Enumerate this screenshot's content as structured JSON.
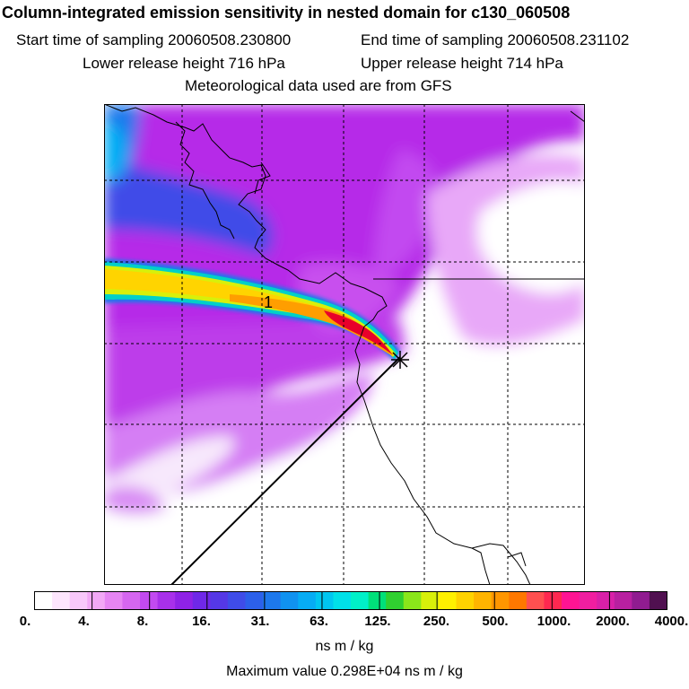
{
  "header": {
    "title": "Column-integrated emission sensitivity in nested domain for c130_060508",
    "start_label": "Start time of sampling 20060508.230800",
    "end_label": "End time of sampling 20060508.231102",
    "lower_label": "Lower release height  716 hPa",
    "upper_label": "Upper release height  714 hPa",
    "met_label": "Meteorological data used are from GFS"
  },
  "map": {
    "plume_label": "1",
    "colors": {
      "background": "#ffffff",
      "purple": "#b428e8",
      "light_purple": "#d97cf5",
      "pale": "#f3d6fb",
      "blue": "#3a4ee0",
      "cyan": "#1a9cf0",
      "plume_yellow": "#ffd400",
      "plume_orange": "#ff8c00",
      "plume_red": "#e8002a",
      "plume_green": "#50d850",
      "coastline": "#000000",
      "grid": "#000000"
    }
  },
  "colorbar": {
    "tick_labels": [
      "0.",
      "4.",
      "8.",
      "16.",
      "31.",
      "63.",
      "125.",
      "250.",
      "500.",
      "1000.",
      "2000.",
      "4000."
    ],
    "colors": [
      "#ffffff",
      "#fde6fd",
      "#f8c8fa",
      "#f2a8f6",
      "#e685f3",
      "#d566f0",
      "#c24af0",
      "#a830ea",
      "#8f22e6",
      "#6f28e8",
      "#5538e6",
      "#3f4ce8",
      "#2c60ea",
      "#1d78ec",
      "#1092f0",
      "#06acf4",
      "#00c6f0",
      "#00e0e8",
      "#00f0c8",
      "#00e07a",
      "#30d030",
      "#8ae61a",
      "#d8f00a",
      "#fff000",
      "#ffd200",
      "#ffb400",
      "#ff9600",
      "#ff7800",
      "#ff5050",
      "#ff2850",
      "#ff1493",
      "#f01ea0",
      "#d820a8",
      "#b820a0",
      "#901c90",
      "#501050"
    ],
    "units": "ns m / kg",
    "max_value": "Maximum value  0.298E+04 ns m / kg"
  }
}
